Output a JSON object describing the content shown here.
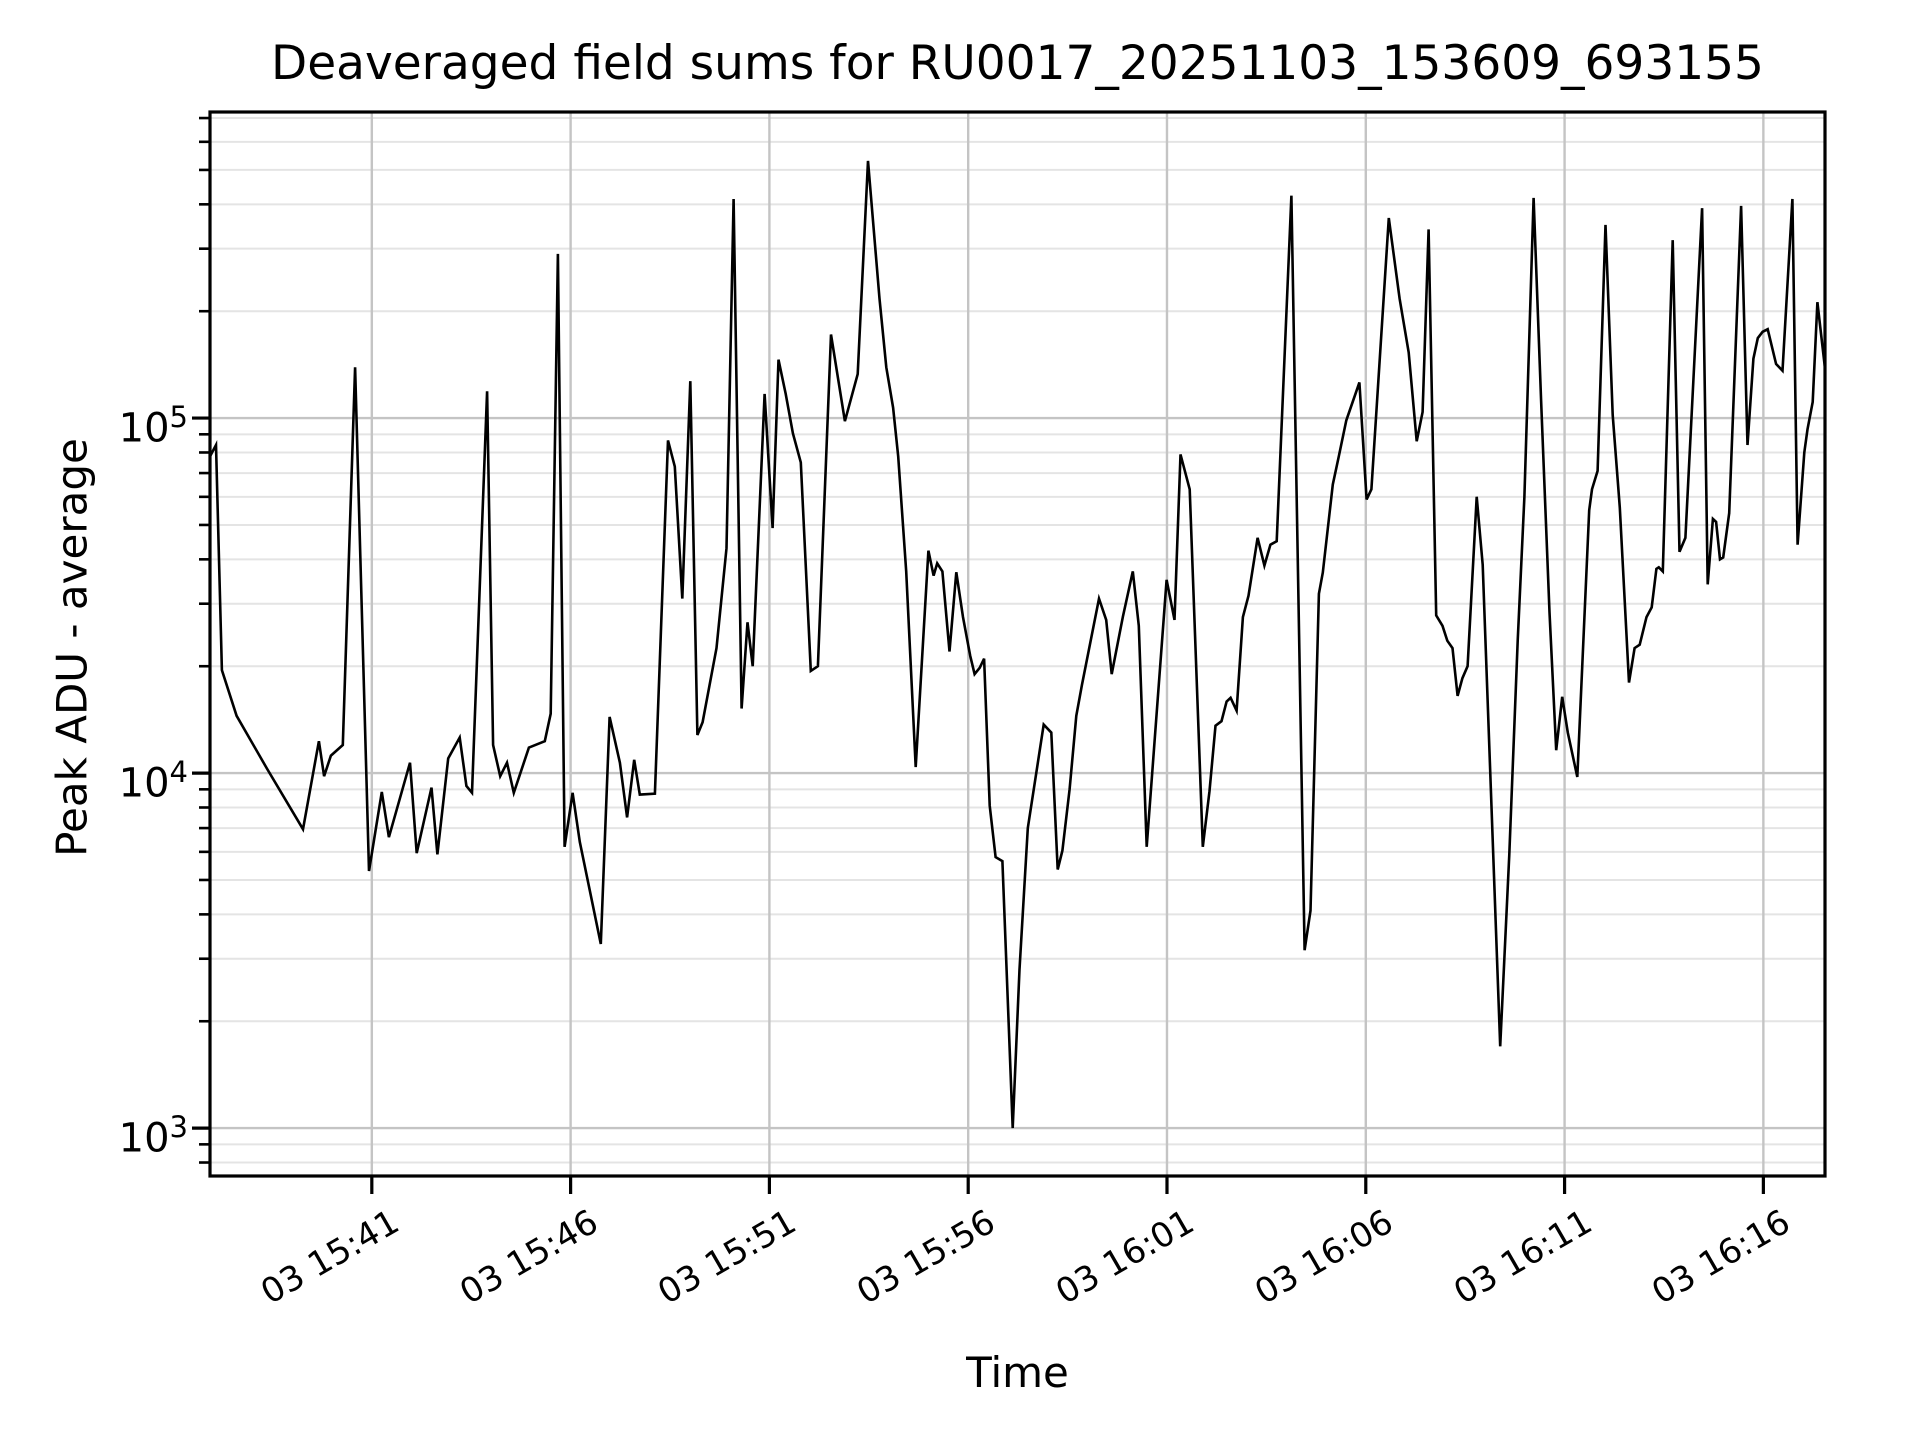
{
  "figure": {
    "background": "#ffffff",
    "line_color": "#000000",
    "spine_color": "#000000",
    "grid_major_color": "#c4c4c4",
    "grid_minor_color": "#e4e4e4"
  },
  "chart_data": {
    "type": "line",
    "title": "Deaveraged field sums for RU0017_20251103_153609_693155",
    "xlabel": "Time",
    "ylabel": "Peak ADU - average",
    "grid": "both",
    "legend_position": "none",
    "x_axis": {
      "unit": "minutes since 2025-11-03 15:41",
      "lim": [
        -4.07,
        36.55
      ],
      "major_ticks": [
        {
          "t": 0,
          "label": "03 15:41"
        },
        {
          "t": 5,
          "label": "03 15:46"
        },
        {
          "t": 10,
          "label": "03 15:51"
        },
        {
          "t": 15,
          "label": "03 15:56"
        },
        {
          "t": 20,
          "label": "03 16:01"
        },
        {
          "t": 25,
          "label": "03 16:06"
        },
        {
          "t": 30,
          "label": "03 16:11"
        },
        {
          "t": 35,
          "label": "03 16:16"
        }
      ]
    },
    "y_axis": {
      "scale": "log",
      "lim": [
        733,
        728000
      ],
      "major_ticks": [
        {
          "value": 1000,
          "base": "10",
          "exp": "3"
        },
        {
          "value": 10000,
          "base": "10",
          "exp": "4"
        },
        {
          "value": 100000,
          "base": "10",
          "exp": "5"
        }
      ],
      "minor_ticks": [
        800,
        900,
        2000,
        3000,
        4000,
        5000,
        6000,
        7000,
        8000,
        9000,
        20000,
        30000,
        40000,
        50000,
        60000,
        70000,
        80000,
        90000,
        200000,
        300000,
        400000,
        500000,
        600000,
        700000
      ]
    },
    "series": [
      {
        "name": "Peak ADU - average",
        "color": "#000000",
        "points": [
          [
            -4.07,
            78000
          ],
          [
            -3.92,
            84000
          ],
          [
            -3.77,
            19500
          ],
          [
            -3.4,
            14500
          ],
          [
            -2.64,
            10300
          ],
          [
            -1.73,
            6950
          ],
          [
            -1.33,
            12300
          ],
          [
            -1.2,
            9800
          ],
          [
            -1.03,
            11200
          ],
          [
            -0.73,
            12000
          ],
          [
            -0.42,
            139000
          ],
          [
            -0.07,
            5300
          ],
          [
            0.25,
            8850
          ],
          [
            0.43,
            6600
          ],
          [
            0.96,
            10700
          ],
          [
            1.13,
            5950
          ],
          [
            1.5,
            9100
          ],
          [
            1.65,
            5900
          ],
          [
            1.92,
            11000
          ],
          [
            2.21,
            12600
          ],
          [
            2.38,
            9200
          ],
          [
            2.52,
            8800
          ],
          [
            2.9,
            119000
          ],
          [
            3.05,
            12000
          ],
          [
            3.23,
            9800
          ],
          [
            3.4,
            10700
          ],
          [
            3.57,
            8800
          ],
          [
            3.95,
            11800
          ],
          [
            4.35,
            12300
          ],
          [
            4.5,
            14700
          ],
          [
            4.68,
            290000
          ],
          [
            4.85,
            6200
          ],
          [
            5.05,
            8800
          ],
          [
            5.23,
            6400
          ],
          [
            5.76,
            3300
          ],
          [
            5.98,
            14400
          ],
          [
            6.24,
            10700
          ],
          [
            6.42,
            7500
          ],
          [
            6.6,
            10900
          ],
          [
            6.74,
            8700
          ],
          [
            7.12,
            8750
          ],
          [
            7.45,
            86500
          ],
          [
            7.62,
            73000
          ],
          [
            7.81,
            31000
          ],
          [
            8.01,
            127000
          ],
          [
            8.19,
            12800
          ],
          [
            8.32,
            13900
          ],
          [
            8.67,
            22500
          ],
          [
            8.92,
            43000
          ],
          [
            9.1,
            414000
          ],
          [
            9.3,
            15200
          ],
          [
            9.45,
            26600
          ],
          [
            9.58,
            20000
          ],
          [
            9.88,
            117000
          ],
          [
            10.08,
            49000
          ],
          [
            10.23,
            146000
          ],
          [
            10.41,
            117000
          ],
          [
            10.59,
            90600
          ],
          [
            10.79,
            75000
          ],
          [
            11.04,
            19400
          ],
          [
            11.22,
            20000
          ],
          [
            11.55,
            172000
          ],
          [
            11.9,
            98000
          ],
          [
            12.22,
            133000
          ],
          [
            12.48,
            530000
          ],
          [
            12.77,
            217000
          ],
          [
            12.94,
            139000
          ],
          [
            13.11,
            107000
          ],
          [
            13.24,
            78000
          ],
          [
            13.44,
            37000
          ],
          [
            13.68,
            10400
          ],
          [
            14.0,
            42300
          ],
          [
            14.13,
            36000
          ],
          [
            14.22,
            39000
          ],
          [
            14.35,
            37000
          ],
          [
            14.53,
            22000
          ],
          [
            14.7,
            36800
          ],
          [
            14.87,
            27500
          ],
          [
            15.05,
            21400
          ],
          [
            15.16,
            19000
          ],
          [
            15.29,
            19800
          ],
          [
            15.4,
            21000
          ],
          [
            15.54,
            8100
          ],
          [
            15.69,
            5800
          ],
          [
            15.86,
            5650
          ],
          [
            16.12,
            1000
          ],
          [
            16.29,
            2800
          ],
          [
            16.5,
            7000
          ],
          [
            16.9,
            13700
          ],
          [
            17.09,
            13000
          ],
          [
            17.25,
            5350
          ],
          [
            17.37,
            6050
          ],
          [
            17.55,
            9000
          ],
          [
            17.72,
            14500
          ],
          [
            17.86,
            17700
          ],
          [
            18.29,
            31000
          ],
          [
            18.47,
            27000
          ],
          [
            18.61,
            19000
          ],
          [
            18.89,
            27600
          ],
          [
            19.14,
            37000
          ],
          [
            19.29,
            26000
          ],
          [
            19.49,
            6200
          ],
          [
            19.99,
            35000
          ],
          [
            20.19,
            27000
          ],
          [
            20.34,
            79000
          ],
          [
            20.57,
            63000
          ],
          [
            20.9,
            6200
          ],
          [
            21.07,
            8900
          ],
          [
            21.22,
            13600
          ],
          [
            21.37,
            14000
          ],
          [
            21.5,
            15900
          ],
          [
            21.6,
            16300
          ],
          [
            21.75,
            15000
          ],
          [
            21.91,
            27500
          ],
          [
            22.05,
            31600
          ],
          [
            22.28,
            46000
          ],
          [
            22.45,
            38400
          ],
          [
            22.6,
            44000
          ],
          [
            22.76,
            45000
          ],
          [
            23.13,
            423000
          ],
          [
            23.46,
            3170
          ],
          [
            23.61,
            4100
          ],
          [
            23.82,
            32000
          ],
          [
            23.92,
            36700
          ],
          [
            24.17,
            65000
          ],
          [
            24.32,
            78000
          ],
          [
            24.51,
            98500
          ],
          [
            24.84,
            126000
          ],
          [
            25.02,
            59000
          ],
          [
            25.14,
            63000
          ],
          [
            25.58,
            366000
          ],
          [
            25.85,
            217000
          ],
          [
            26.08,
            153000
          ],
          [
            26.28,
            86000
          ],
          [
            26.43,
            104000
          ],
          [
            26.58,
            340000
          ],
          [
            26.77,
            27800
          ],
          [
            26.93,
            26000
          ],
          [
            27.05,
            23600
          ],
          [
            27.18,
            22500
          ],
          [
            27.31,
            16500
          ],
          [
            27.43,
            18500
          ],
          [
            27.56,
            20000
          ],
          [
            27.79,
            60000
          ],
          [
            27.94,
            38600
          ],
          [
            28.38,
            1700
          ],
          [
            28.61,
            5900
          ],
          [
            28.82,
            23600
          ],
          [
            28.99,
            60000
          ],
          [
            29.22,
            417000
          ],
          [
            29.41,
            112000
          ],
          [
            29.62,
            28400
          ],
          [
            29.79,
            11600
          ],
          [
            29.94,
            16400
          ],
          [
            30.08,
            13000
          ],
          [
            30.32,
            9750
          ],
          [
            30.62,
            55000
          ],
          [
            30.69,
            63000
          ],
          [
            30.83,
            71000
          ],
          [
            31.03,
            350000
          ],
          [
            31.21,
            102000
          ],
          [
            31.39,
            56000
          ],
          [
            31.62,
            18000
          ],
          [
            31.76,
            22500
          ],
          [
            31.89,
            23000
          ],
          [
            32.06,
            27500
          ],
          [
            32.19,
            29300
          ],
          [
            32.31,
            37600
          ],
          [
            32.37,
            38000
          ],
          [
            32.47,
            37000
          ],
          [
            32.72,
            317000
          ],
          [
            32.89,
            42000
          ],
          [
            33.04,
            46000
          ],
          [
            33.46,
            390000
          ],
          [
            33.6,
            34000
          ],
          [
            33.73,
            52000
          ],
          [
            33.81,
            51000
          ],
          [
            33.91,
            40000
          ],
          [
            33.99,
            40500
          ],
          [
            34.14,
            54000
          ],
          [
            34.44,
            396000
          ],
          [
            34.6,
            84000
          ],
          [
            34.75,
            147000
          ],
          [
            34.86,
            168000
          ],
          [
            34.98,
            175000
          ],
          [
            35.11,
            178000
          ],
          [
            35.32,
            142000
          ],
          [
            35.48,
            136000
          ],
          [
            35.73,
            414000
          ],
          [
            35.86,
            44000
          ],
          [
            36.03,
            80000
          ],
          [
            36.11,
            93000
          ],
          [
            36.24,
            111000
          ],
          [
            36.36,
            212000
          ],
          [
            36.55,
            138000
          ]
        ]
      }
    ]
  }
}
